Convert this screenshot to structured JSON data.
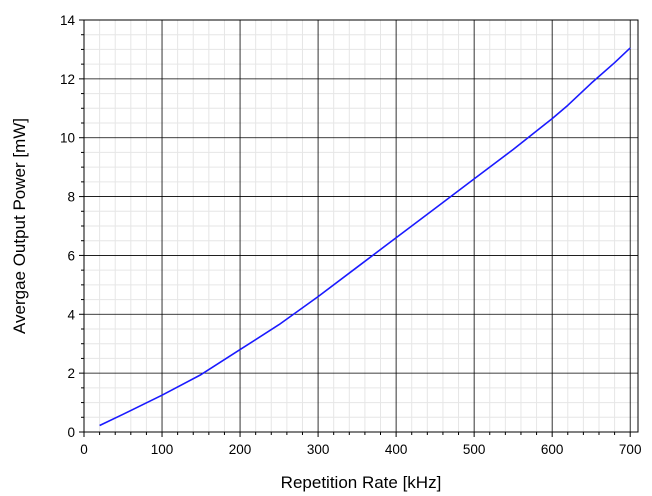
{
  "chart_data": {
    "type": "line",
    "title": "",
    "xlabel": "Repetition Rate [kHz]",
    "ylabel": "Avergae Output Power [mW]",
    "xlim": [
      0,
      710
    ],
    "ylim": [
      0,
      14
    ],
    "xticks": [
      0,
      100,
      200,
      300,
      400,
      500,
      600,
      700
    ],
    "yticks": [
      0,
      2,
      4,
      6,
      8,
      10,
      12,
      14
    ],
    "grid": {
      "major": true,
      "minor": true
    },
    "legend": "none",
    "series": [
      {
        "color": "#1a1aff",
        "x": [
          20,
          50,
          100,
          150,
          200,
          250,
          300,
          350,
          400,
          450,
          500,
          550,
          600,
          620,
          650,
          680,
          700
        ],
        "y": [
          0.22,
          0.6,
          1.25,
          1.95,
          2.8,
          3.65,
          4.6,
          5.6,
          6.6,
          7.6,
          8.6,
          9.6,
          10.65,
          11.1,
          11.85,
          12.55,
          13.05
        ]
      }
    ]
  }
}
